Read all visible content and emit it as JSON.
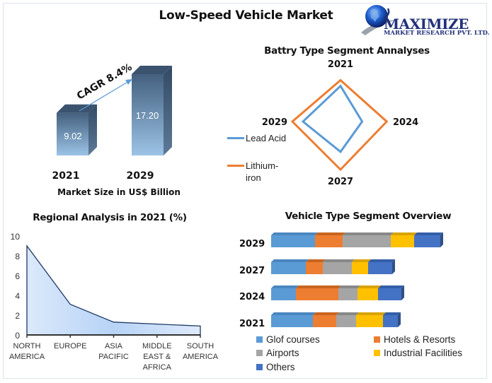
{
  "title": "Low-Speed Vehicle Market",
  "logo": {
    "icon": "globe-icon",
    "word": "MAXIMIZE",
    "subtitle": "MARKET RESEARCH PVT. LTD."
  },
  "colors": {
    "lead_acid": "#5b9bd5",
    "lithium_iron": "#ed7d31",
    "golf": "#5b9bd5",
    "hotels": "#ed7d31",
    "airports": "#a5a5a5",
    "industrial": "#ffc000",
    "others": "#4472c4",
    "bar_dark": "#44607f",
    "bar_light": "#9cc3e6",
    "area_line": "#1f3864"
  },
  "chart_data": [
    {
      "id": "market-size",
      "type": "bar",
      "title": "",
      "xlabel": "Market Size in US$ Billion",
      "categories": [
        "2021",
        "2029"
      ],
      "values": [
        9.02,
        17.2
      ],
      "value_labels": [
        "9.02",
        "17.20"
      ],
      "annotation": "CAGR 8.4%"
    },
    {
      "id": "battery-type",
      "type": "radar",
      "title": "Battry Type Segment Annalyses",
      "axes": [
        "2021",
        "2024",
        "2027",
        "2029"
      ],
      "series": [
        {
          "name": "Lead Acid",
          "values": [
            7.4,
            4.5,
            6.3,
            7.8
          ]
        },
        {
          "name": "Lithium-iron",
          "values": [
            8.6,
            9.6,
            10.0,
            10.0
          ]
        }
      ],
      "legend_position": "left"
    },
    {
      "id": "regional",
      "type": "area",
      "title": "Regional Analysis in 2021 (%)",
      "categories": [
        "NORTH AMERICA",
        "EUROPE",
        "ASIA PACIFIC",
        "MIDDLE EAST & AFRICA",
        "SOUTH AMERICA"
      ],
      "category_lines": [
        [
          "NORTH",
          "AMERICA"
        ],
        [
          "EUROPE"
        ],
        [
          "ASIA",
          "PACIFIC"
        ],
        [
          "MIDDLE",
          "EAST &",
          "AFRICA"
        ],
        [
          "SOUTH",
          "AMERICA"
        ]
      ],
      "values": [
        9.0,
        3.1,
        1.3,
        1.1,
        0.9
      ],
      "ylim": [
        0,
        10
      ],
      "yticks": [
        0,
        2,
        4,
        6,
        8,
        10
      ],
      "grid": false
    },
    {
      "id": "vehicle-type",
      "type": "bar",
      "orientation": "horizontal-stacked",
      "title": "Vehicle Type Segment Overview",
      "categories": [
        "2029",
        "2027",
        "2024",
        "2021"
      ],
      "series": [
        {
          "name": "Glof courses",
          "values": [
            6.2,
            4.9,
            3.5,
            5.9
          ]
        },
        {
          "name": "Hotels & Resorts",
          "values": [
            3.9,
            2.4,
            6.0,
            3.3
          ]
        },
        {
          "name": "Airports",
          "values": [
            6.8,
            4.1,
            2.7,
            2.8
          ]
        },
        {
          "name": "Industrial Facilities",
          "values": [
            3.3,
            2.3,
            2.9,
            3.8
          ]
        },
        {
          "name": "Others",
          "values": [
            3.7,
            3.4,
            3.3,
            2.1
          ]
        }
      ],
      "legend_position": "bottom"
    }
  ]
}
